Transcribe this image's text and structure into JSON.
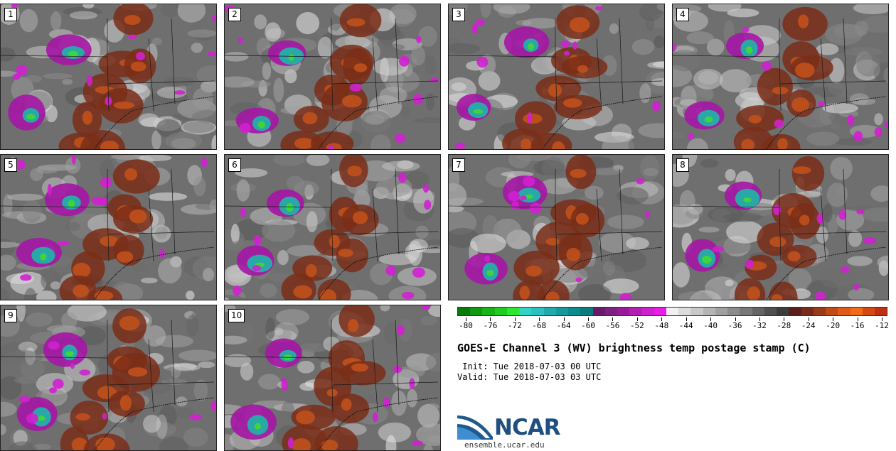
{
  "panels": [
    {
      "label": "1"
    },
    {
      "label": "2"
    },
    {
      "label": "3"
    },
    {
      "label": "4"
    },
    {
      "label": "5"
    },
    {
      "label": "6"
    },
    {
      "label": "7"
    },
    {
      "label": "8"
    },
    {
      "label": "9"
    },
    {
      "label": "10"
    }
  ],
  "colorbar": {
    "colors": [
      "#0b7a0b",
      "#109910",
      "#17b417",
      "#1fcc1f",
      "#2ee62e",
      "#33d3c8",
      "#2cc0c0",
      "#20aaaa",
      "#149a9a",
      "#0a8c8c",
      "#0c7b7b",
      "#6a1a6a",
      "#7f1f7f",
      "#991a99",
      "#b31fb3",
      "#cc22cc",
      "#e61ee6",
      "#f0f0f0",
      "#dcdcdc",
      "#c8c8c8",
      "#b4b4b4",
      "#a0a0a0",
      "#8c8c8c",
      "#787878",
      "#646464",
      "#505050",
      "#3c3c3c",
      "#5a1f1a",
      "#7a2a18",
      "#993a18",
      "#c04a18",
      "#e05a18",
      "#f06a18",
      "#d24a10",
      "#c03010"
    ],
    "tick_labels": [
      "-80",
      "-76",
      "-72",
      "-68",
      "-64",
      "-60",
      "-56",
      "-52",
      "-48",
      "-44",
      "-40",
      "-36",
      "-32",
      "-28",
      "-24",
      "-20",
      "-16",
      "-12"
    ]
  },
  "title": "GOES-E Channel 3 (WV) brightness temp postage stamp (C)",
  "init": " Init: Tue 2018-07-03 00 UTC",
  "valid": "Valid: Tue 2018-07-03 03 UTC",
  "logo": {
    "text": "NCAR"
  },
  "site": "ensemble.ucar.edu"
}
